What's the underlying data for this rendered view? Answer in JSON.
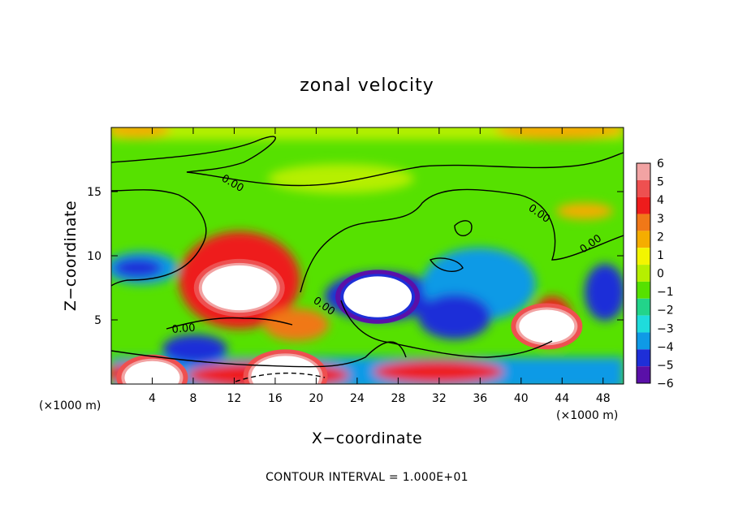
{
  "chart_data": {
    "type": "heatmap",
    "title": "zonal velocity",
    "xlabel": "X−coordinate",
    "ylabel": "Z−coordinate",
    "x_unit_left": "(×1000 m)",
    "x_unit_right": "(×1000 m)",
    "xlim": [
      0,
      50
    ],
    "ylim": [
      0,
      20
    ],
    "xticks": [
      4,
      8,
      12,
      16,
      20,
      24,
      28,
      32,
      36,
      40,
      44,
      48
    ],
    "yticks": [
      5,
      10,
      15
    ],
    "colorbar": {
      "levels": [
        6,
        5,
        4,
        3,
        2,
        1,
        0,
        -1,
        -2,
        -3,
        -4,
        -5,
        -6
      ],
      "labels": [
        "6",
        "5",
        "4",
        "3",
        "2",
        "1",
        "0",
        "−1",
        "−2",
        "−3",
        "−4",
        "−5",
        "−6"
      ],
      "colors": [
        "#f2a3a3",
        "#ee5050",
        "#ee1c1c",
        "#f07818",
        "#f5ad00",
        "#f3f500",
        "#b6ef00",
        "#56e100",
        "#22d48a",
        "#1fdcdc",
        "#0f9ae6",
        "#1e2fd8",
        "#5a10a8"
      ]
    },
    "contour_label": "0.00",
    "contour_interval_text": "CONTOUR INTERVAL = 1.000E+01",
    "features": [
      {
        "x": 12.5,
        "z": 7.5,
        "value": 8
      },
      {
        "x": 26,
        "z": 6.8,
        "value": -7
      },
      {
        "x": 42.5,
        "z": 4.5,
        "value": 5
      },
      {
        "x": 4,
        "z": 0.5,
        "value": 5
      },
      {
        "x": 17,
        "z": 0.6,
        "value": 7
      }
    ]
  }
}
